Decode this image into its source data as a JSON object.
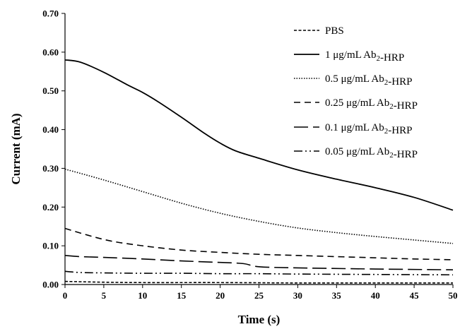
{
  "chart_data": {
    "type": "line",
    "title": "",
    "xlabel": "Time (s)",
    "ylabel": "Current (mA)",
    "xlim": [
      0,
      50
    ],
    "ylim": [
      0,
      0.7
    ],
    "xticks": [
      0,
      5,
      10,
      15,
      20,
      25,
      30,
      35,
      40,
      45,
      50
    ],
    "yticks": [
      0.0,
      0.1,
      0.2,
      0.3,
      0.4,
      0.5,
      0.6,
      0.7
    ],
    "ytick_labels": [
      "0.00",
      "0.10",
      "0.20",
      "0.30",
      "0.40",
      "0.50",
      "0.60",
      "0.70"
    ],
    "grid": false,
    "legend_position": "top-right",
    "series": [
      {
        "name": "PBS",
        "legend_text": [
          [
            "PBS",
            ""
          ]
        ],
        "style": "short-dash",
        "x": [
          0,
          5,
          10,
          20,
          30,
          40,
          50
        ],
        "y": [
          0.008,
          0.006,
          0.005,
          0.005,
          0.004,
          0.004,
          0.004
        ]
      },
      {
        "name": "1 μg/mL Ab2-HRP",
        "legend_text": [
          [
            "1 μg/mL Ab",
            ""
          ],
          [
            "2",
            "sub"
          ],
          [
            "-HRP",
            ""
          ]
        ],
        "style": "solid",
        "x": [
          0,
          2,
          5,
          8,
          10,
          12,
          15,
          18,
          20,
          22,
          25,
          30,
          35,
          40,
          45,
          50
        ],
        "y": [
          0.58,
          0.574,
          0.548,
          0.516,
          0.496,
          0.472,
          0.432,
          0.39,
          0.365,
          0.345,
          0.326,
          0.296,
          0.272,
          0.25,
          0.225,
          0.192
        ]
      },
      {
        "name": "0.5 μg/mL Ab2-HRP",
        "legend_text": [
          [
            "0.5 μg/mL Ab",
            ""
          ],
          [
            "2",
            "sub"
          ],
          [
            "-HRP",
            ""
          ]
        ],
        "style": "dotted",
        "x": [
          0,
          5,
          10,
          15,
          20,
          25,
          30,
          35,
          40,
          45,
          50
        ],
        "y": [
          0.298,
          0.27,
          0.24,
          0.21,
          0.184,
          0.163,
          0.146,
          0.134,
          0.124,
          0.115,
          0.106
        ]
      },
      {
        "name": "0.25 μg/mL Ab2-HRP",
        "legend_text": [
          [
            "0.25 μg/mL Ab",
            ""
          ],
          [
            "2",
            "sub"
          ],
          [
            "-HRP",
            ""
          ]
        ],
        "style": "dash",
        "x": [
          0,
          3,
          6,
          10,
          15,
          20,
          25,
          30,
          35,
          40,
          45,
          50
        ],
        "y": [
          0.145,
          0.127,
          0.112,
          0.1,
          0.089,
          0.083,
          0.078,
          0.075,
          0.072,
          0.069,
          0.066,
          0.064
        ]
      },
      {
        "name": "0.1 μg/mL Ab2-HRP",
        "legend_text": [
          [
            "0.1 μg/mL Ab",
            ""
          ],
          [
            "2",
            "sub"
          ],
          [
            "-HRP",
            ""
          ]
        ],
        "style": "long-dash",
        "x": [
          0,
          2,
          5,
          10,
          15,
          20,
          23,
          25,
          30,
          40,
          50
        ],
        "y": [
          0.075,
          0.072,
          0.07,
          0.066,
          0.061,
          0.057,
          0.054,
          0.046,
          0.043,
          0.04,
          0.038
        ]
      },
      {
        "name": "0.05 μg/mL Ab2-HRP",
        "legend_text": [
          [
            "0.05 μg/mL Ab",
            ""
          ],
          [
            "2",
            "sub"
          ],
          [
            "-HRP",
            ""
          ]
        ],
        "style": "dash-dot-dot",
        "x": [
          0,
          2,
          5,
          10,
          15,
          20,
          25,
          30,
          40,
          50
        ],
        "y": [
          0.034,
          0.031,
          0.03,
          0.029,
          0.029,
          0.028,
          0.028,
          0.027,
          0.026,
          0.025
        ]
      }
    ]
  }
}
